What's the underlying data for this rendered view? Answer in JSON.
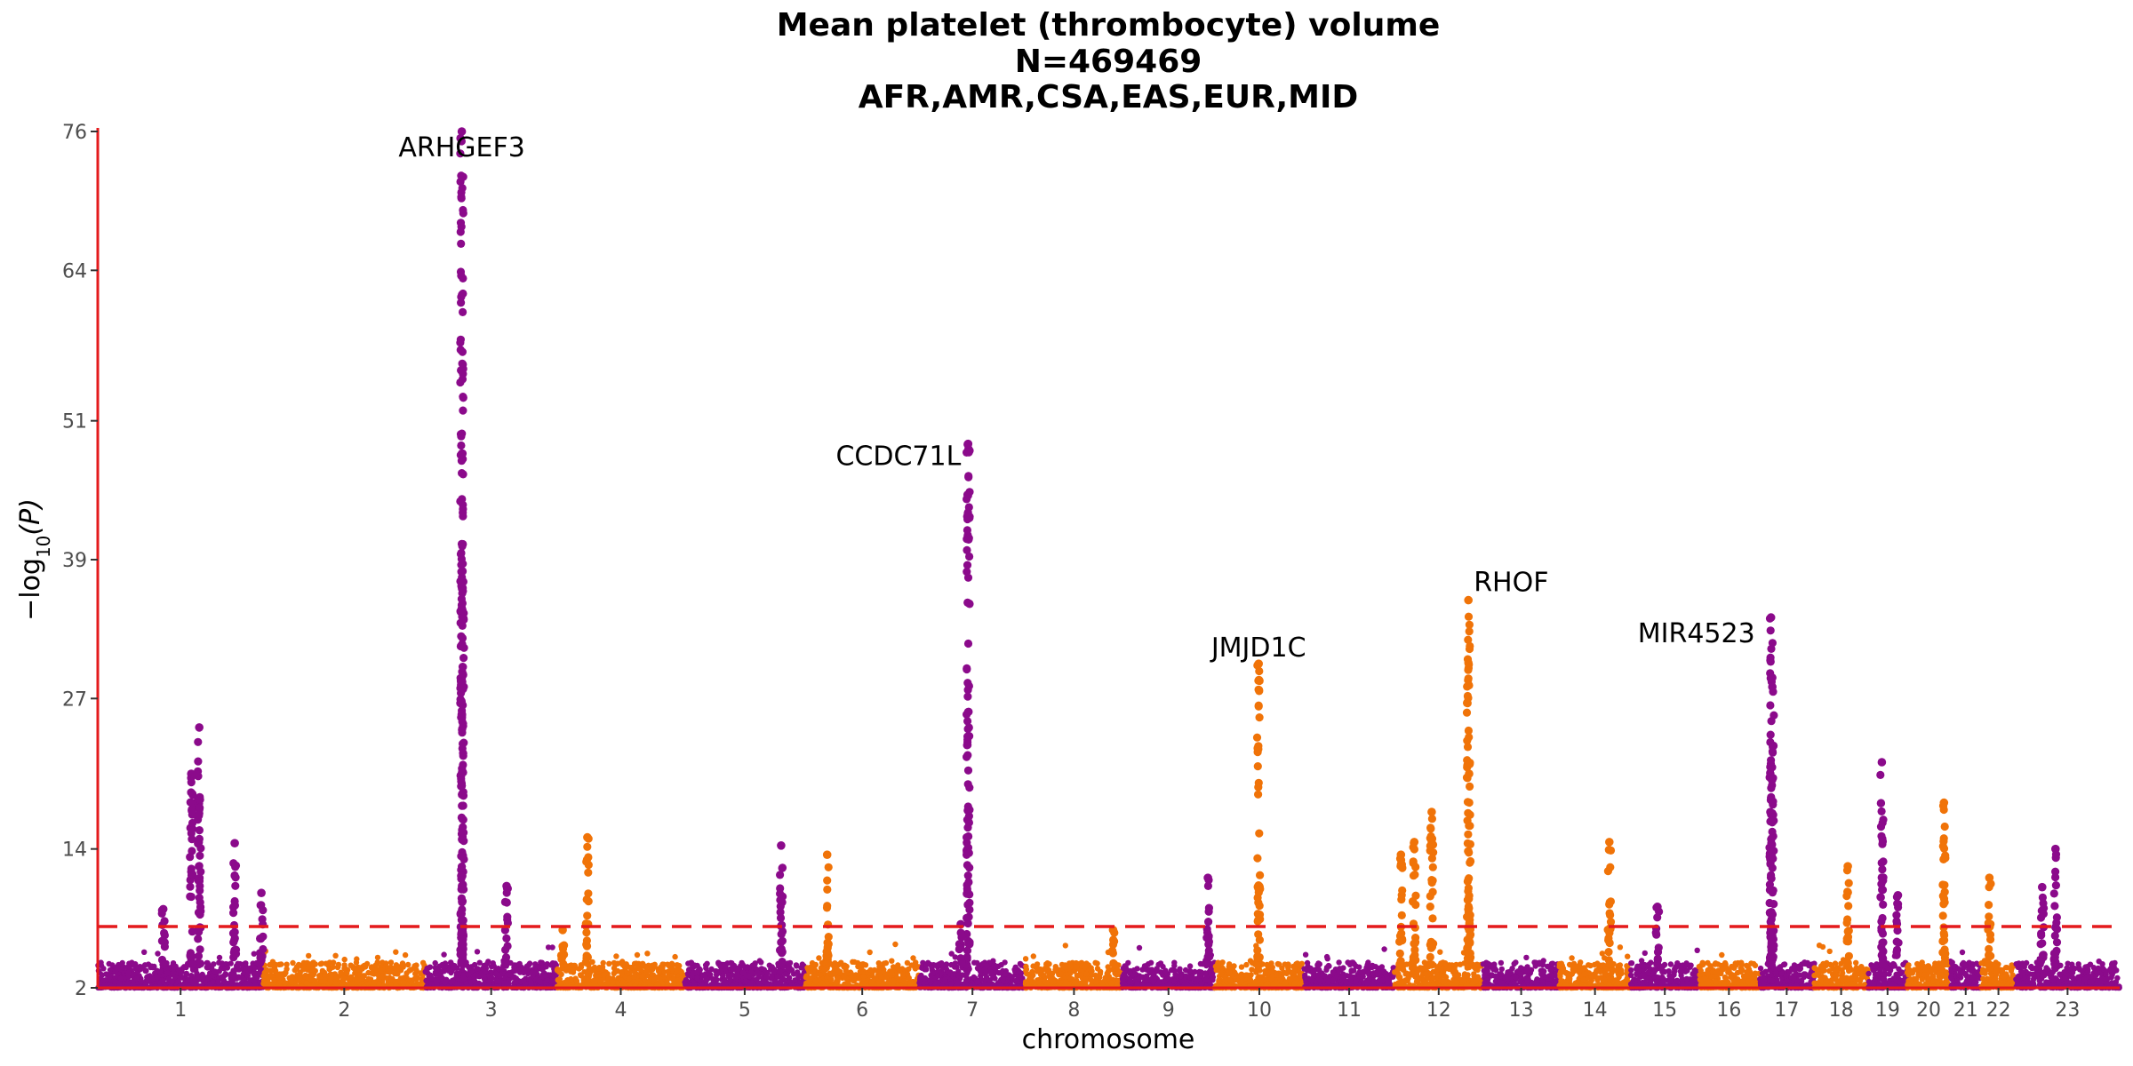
{
  "chart_data": {
    "type": "scatter",
    "subtype": "manhattan",
    "title_lines": [
      "Mean platelet (thrombocyte) volume",
      "N=469469",
      "AFR,AMR,CSA,EAS,EUR,MID"
    ],
    "xlabel": "chromosome",
    "ylabel": "−log₁₀(P)",
    "ylabel_main": "−log",
    "ylabel_sub": "10",
    "ylabel_paren": "(P)",
    "ylim": [
      2,
      76
    ],
    "yticks": [
      2,
      14,
      27,
      39,
      51,
      64,
      76
    ],
    "significance_line": 7.3,
    "colors": {
      "odd_chromosome": "#8B0A8B",
      "even_chromosome": "#F07308",
      "axis": "#E41A1C",
      "threshold": "#E41A1C"
    },
    "chromosomes": [
      {
        "label": "1",
        "start": 0,
        "end": 248
      },
      {
        "label": "2",
        "start": 248,
        "end": 490
      },
      {
        "label": "3",
        "start": 490,
        "end": 688
      },
      {
        "label": "4",
        "start": 688,
        "end": 878
      },
      {
        "label": "5",
        "start": 878,
        "end": 1059
      },
      {
        "label": "6",
        "start": 1059,
        "end": 1230
      },
      {
        "label": "7",
        "start": 1230,
        "end": 1389
      },
      {
        "label": "8",
        "start": 1389,
        "end": 1534
      },
      {
        "label": "9",
        "start": 1534,
        "end": 1672
      },
      {
        "label": "10",
        "start": 1672,
        "end": 1806
      },
      {
        "label": "11",
        "start": 1806,
        "end": 1941
      },
      {
        "label": "12",
        "start": 1941,
        "end": 2074
      },
      {
        "label": "13",
        "start": 2074,
        "end": 2188
      },
      {
        "label": "14",
        "start": 2188,
        "end": 2295
      },
      {
        "label": "15",
        "start": 2295,
        "end": 2397
      },
      {
        "label": "16",
        "start": 2397,
        "end": 2487
      },
      {
        "label": "17",
        "start": 2487,
        "end": 2570
      },
      {
        "label": "18",
        "start": 2570,
        "end": 2650
      },
      {
        "label": "19",
        "start": 2650,
        "end": 2709
      },
      {
        "label": "20",
        "start": 2709,
        "end": 2773
      },
      {
        "label": "21",
        "start": 2773,
        "end": 2820
      },
      {
        "label": "22",
        "start": 2820,
        "end": 2871
      },
      {
        "label": "23",
        "start": 2871,
        "end": 3027
      }
    ],
    "peaks": [
      {
        "chr": "1",
        "pos": 98,
        "max": 8.8
      },
      {
        "chr": "1",
        "pos": 152,
        "max": 24.5
      },
      {
        "chr": "1",
        "pos": 140,
        "max": 20.5
      },
      {
        "chr": "1",
        "pos": 205,
        "max": 14.5
      },
      {
        "chr": "1",
        "pos": 245,
        "max": 10.2
      },
      {
        "chr": "2",
        "pos": 485,
        "max": 15.0
      },
      {
        "chr": "3",
        "pos": 55,
        "max": 76.0
      },
      {
        "chr": "3",
        "pos": 56,
        "max": 38.0
      },
      {
        "chr": "3",
        "pos": 122,
        "max": 10.8
      },
      {
        "chr": "4",
        "pos": 8,
        "max": 7.0
      },
      {
        "chr": "5",
        "pos": 145,
        "max": 14.3
      },
      {
        "chr": "6",
        "pos": 33,
        "max": 13.5
      },
      {
        "chr": "7",
        "pos": 73,
        "max": 49.0
      },
      {
        "chr": "7",
        "pos": 62,
        "max": 7.5
      },
      {
        "chr": "8",
        "pos": 131,
        "max": 7.0
      },
      {
        "chr": "9",
        "pos": 128,
        "max": 11.5
      },
      {
        "chr": "10",
        "pos": 66,
        "max": 30.0
      },
      {
        "chr": "12",
        "pos": 10,
        "max": 13.5
      },
      {
        "chr": "12",
        "pos": 30,
        "max": 14.6
      },
      {
        "chr": "12",
        "pos": 56,
        "max": 17.2
      },
      {
        "chr": "12",
        "pos": 111,
        "max": 35.5
      },
      {
        "chr": "12",
        "pos": 112,
        "max": 20.5
      },
      {
        "chr": "14",
        "pos": 75,
        "max": 14.6
      },
      {
        "chr": "15",
        "pos": 40,
        "max": 9.0
      },
      {
        "chr": "17",
        "pos": 18,
        "max": 34.0
      },
      {
        "chr": "17",
        "pos": 20,
        "max": 28.0
      },
      {
        "chr": "18",
        "pos": 50,
        "max": 12.5
      },
      {
        "chr": "19",
        "pos": 21,
        "max": 21.5
      },
      {
        "chr": "19",
        "pos": 45,
        "max": 10.0
      },
      {
        "chr": "20",
        "pos": 55,
        "max": 18.0
      },
      {
        "chr": "22",
        "pos": 12,
        "max": 11.5
      },
      {
        "chr": "23",
        "pos": 60,
        "max": 14.0
      },
      {
        "chr": "23",
        "pos": 40,
        "max": 10.7
      }
    ],
    "annotations": [
      {
        "label": "ARHGEF3",
        "chr": "3",
        "pos": 55,
        "y": 76.0,
        "anchor": "middle",
        "dx": 0,
        "dy": 28
      },
      {
        "label": "CCDC71L",
        "chr": "7",
        "pos": 73,
        "y": 49.0,
        "anchor": "end",
        "dx": -8,
        "dy": 24
      },
      {
        "label": "JMJD1C",
        "chr": "10",
        "pos": 66,
        "y": 30.0,
        "anchor": "middle",
        "dx": 0,
        "dy": -8
      },
      {
        "label": "RHOF",
        "chr": "12",
        "pos": 111,
        "y": 35.5,
        "anchor": "start",
        "dx": 6,
        "dy": -10
      },
      {
        "label": "MIR4523",
        "chr": "17",
        "pos": 18,
        "y": 34.0,
        "anchor": "end",
        "dx": -18,
        "dy": 28
      }
    ]
  }
}
